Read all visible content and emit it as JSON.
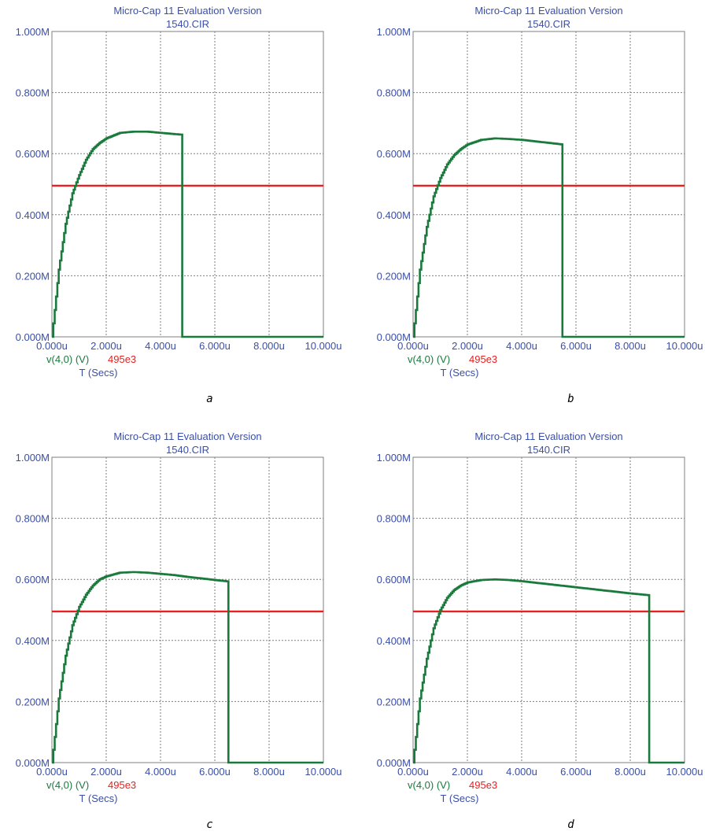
{
  "figure": {
    "colors": {
      "plot_border": "#7f7f7f",
      "grid": "#7f7f7f",
      "text": "#3a4fa6",
      "voltage_series": "#1a7a3c",
      "threshold": "#e8201f"
    }
  },
  "chart_data": [
    {
      "type": "line",
      "caption": "a",
      "title": "Micro-Cap 11 Evaluation Version",
      "subtitle": "1540.CIR",
      "xlabel": "T (Secs)",
      "xlim": [
        0,
        10
      ],
      "ylim": [
        0,
        1
      ],
      "yticks": [
        "0.000M",
        "0.200M",
        "0.400M",
        "0.600M",
        "0.800M",
        "1.000M"
      ],
      "xticks": [
        "0.000u",
        "2.000u",
        "4.000u",
        "6.000u",
        "8.000u",
        "10.000u"
      ],
      "grid": true,
      "series": [
        {
          "name": "v(4,0) (V)",
          "color": "#1a7a3c",
          "x": [
            0,
            0.25,
            0.5,
            0.75,
            1,
            1.25,
            1.5,
            1.75,
            2,
            2.5,
            3,
            3.5,
            4,
            4.5,
            4.8,
            4.8,
            10
          ],
          "y": [
            0,
            0.22,
            0.37,
            0.47,
            0.53,
            0.58,
            0.615,
            0.635,
            0.65,
            0.668,
            0.672,
            0.672,
            0.668,
            0.664,
            0.662,
            0,
            0
          ]
        },
        {
          "name": "495e3",
          "color": "#e8201f",
          "x": [
            0,
            10
          ],
          "y": [
            0.495,
            0.495
          ]
        }
      ]
    },
    {
      "type": "line",
      "caption": "b",
      "title": "Micro-Cap 11 Evaluation Version",
      "subtitle": "1540.CIR",
      "xlabel": "T (Secs)",
      "xlim": [
        0,
        10
      ],
      "ylim": [
        0,
        1
      ],
      "yticks": [
        "0.000M",
        "0.200M",
        "0.400M",
        "0.600M",
        "0.800M",
        "1.000M"
      ],
      "xticks": [
        "0.000u",
        "2.000u",
        "4.000u",
        "6.000u",
        "8.000u",
        "10.000u"
      ],
      "grid": true,
      "series": [
        {
          "name": "v(4,0) (V)",
          "color": "#1a7a3c",
          "x": [
            0,
            0.25,
            0.5,
            0.75,
            1,
            1.25,
            1.5,
            1.75,
            2,
            2.5,
            3,
            3.5,
            4,
            4.5,
            5,
            5.5,
            5.5,
            10
          ],
          "y": [
            0,
            0.22,
            0.36,
            0.46,
            0.52,
            0.565,
            0.595,
            0.615,
            0.63,
            0.645,
            0.65,
            0.648,
            0.645,
            0.64,
            0.635,
            0.63,
            0,
            0
          ]
        },
        {
          "name": "495e3",
          "color": "#e8201f",
          "x": [
            0,
            10
          ],
          "y": [
            0.495,
            0.495
          ]
        }
      ]
    },
    {
      "type": "line",
      "caption": "c",
      "title": "Micro-Cap 11 Evaluation Version",
      "subtitle": "1540.CIR",
      "xlabel": "T (Secs)",
      "xlim": [
        0,
        10
      ],
      "ylim": [
        0,
        1
      ],
      "yticks": [
        "0.000M",
        "0.200M",
        "0.400M",
        "0.600M",
        "0.800M",
        "1.000M"
      ],
      "xticks": [
        "0.000u",
        "2.000u",
        "4.000u",
        "6.000u",
        "8.000u",
        "10.000u"
      ],
      "grid": true,
      "series": [
        {
          "name": "v(4,0) (V)",
          "color": "#1a7a3c",
          "x": [
            0,
            0.25,
            0.5,
            0.75,
            1,
            1.25,
            1.5,
            1.75,
            2,
            2.5,
            3,
            3.5,
            4,
            4.5,
            5,
            5.5,
            6,
            6.5,
            6.5,
            10
          ],
          "y": [
            0,
            0.21,
            0.35,
            0.45,
            0.51,
            0.55,
            0.58,
            0.6,
            0.61,
            0.622,
            0.624,
            0.622,
            0.618,
            0.614,
            0.608,
            0.603,
            0.598,
            0.593,
            0,
            0
          ]
        },
        {
          "name": "495e3",
          "color": "#e8201f",
          "x": [
            0,
            10
          ],
          "y": [
            0.495,
            0.495
          ]
        }
      ]
    },
    {
      "type": "line",
      "caption": "d",
      "title": "Micro-Cap 11 Evaluation Version",
      "subtitle": "1540.CIR",
      "xlabel": "T (Secs)",
      "xlim": [
        0,
        10
      ],
      "ylim": [
        0,
        1
      ],
      "yticks": [
        "0.000M",
        "0.200M",
        "0.400M",
        "0.600M",
        "0.800M",
        "1.000M"
      ],
      "xticks": [
        "0.000u",
        "2.000u",
        "4.000u",
        "6.000u",
        "8.000u",
        "10.000u"
      ],
      "grid": true,
      "series": [
        {
          "name": "v(4,0) (V)",
          "color": "#1a7a3c",
          "x": [
            0,
            0.25,
            0.5,
            0.75,
            1,
            1.25,
            1.5,
            1.75,
            2,
            2.5,
            3,
            3.5,
            4,
            5,
            6,
            7,
            8,
            8.7,
            8.7,
            10
          ],
          "y": [
            0,
            0.21,
            0.34,
            0.44,
            0.5,
            0.54,
            0.565,
            0.58,
            0.59,
            0.598,
            0.6,
            0.598,
            0.594,
            0.584,
            0.574,
            0.564,
            0.554,
            0.548,
            0,
            0
          ]
        },
        {
          "name": "495e3",
          "color": "#e8201f",
          "x": [
            0,
            10
          ],
          "y": [
            0.495,
            0.495
          ]
        }
      ]
    }
  ]
}
